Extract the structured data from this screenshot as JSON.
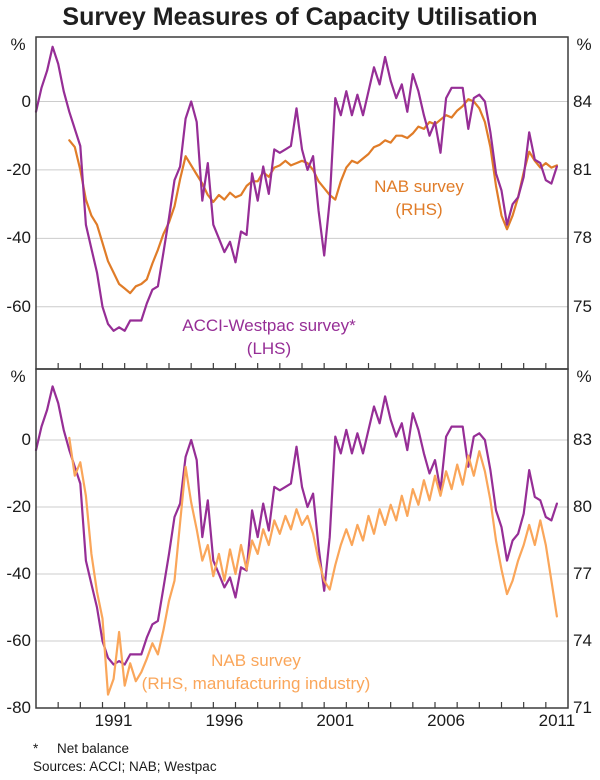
{
  "title": "Survey Measures of Capacity Utilisation",
  "footnote": {
    "marker": "*",
    "text": "Net balance"
  },
  "sources_line": "Sources: ACCI; NAB; Westpac",
  "colors": {
    "purple": "#962e96",
    "orange": "#e07c28",
    "light_orange": "#faa65a",
    "grid": "#cccccc",
    "axis": "#3c3c3c",
    "text": "#1b1b1b"
  },
  "chart_data": {
    "type": "line",
    "x_axis": {
      "range": [
        1988,
        2012
      ],
      "tick_interval_years": 1,
      "labels": [
        "1991",
        "1996",
        "2001",
        "2006",
        "2011"
      ]
    },
    "panels": [
      {
        "name": "top-panel",
        "left_axis": {
          "unit": "%",
          "ticks": [
            0,
            -20,
            -40,
            -60
          ]
        },
        "right_axis": {
          "unit": "%",
          "ticks": [
            84,
            81,
            78,
            75
          ]
        },
        "annotations": [
          {
            "line1": "NAB survey",
            "line2": "(RHS)",
            "color_key": "orange"
          },
          {
            "line1": "ACCI-Westpac survey*",
            "line2": "(LHS)",
            "color_key": "purple"
          }
        ],
        "series": [
          {
            "name": "NAB survey (RHS)",
            "axis": "right",
            "color_key": "orange",
            "x_start": 1989.5,
            "x_step": 0.25,
            "values": [
              82.3,
              82.0,
              81.0,
              79.7,
              79.0,
              78.6,
              77.8,
              77.0,
              76.5,
              76.0,
              75.8,
              75.6,
              75.9,
              76.0,
              76.2,
              76.9,
              77.5,
              78.2,
              78.7,
              79.4,
              80.6,
              81.6,
              81.2,
              80.8,
              80.4,
              79.9,
              79.6,
              79.9,
              79.7,
              80.0,
              79.8,
              79.9,
              80.3,
              80.5,
              80.5,
              80.9,
              80.7,
              81.1,
              81.2,
              81.4,
              81.2,
              81.3,
              81.4,
              81.3,
              81.0,
              80.5,
              80.2,
              79.9,
              79.7,
              80.5,
              81.1,
              81.4,
              81.3,
              81.5,
              81.7,
              82.0,
              82.1,
              82.3,
              82.2,
              82.5,
              82.5,
              82.4,
              82.6,
              82.9,
              82.8,
              83.1,
              83.0,
              83.2,
              83.4,
              83.3,
              83.6,
              83.8,
              84.1,
              84.0,
              83.7,
              83.1,
              82.0,
              80.3,
              79.0,
              78.4,
              79.0,
              79.8,
              80.9,
              81.8,
              81.4,
              81.1,
              81.3,
              81.1,
              81.2
            ]
          },
          {
            "name": "ACCI-Westpac survey* (LHS)",
            "axis": "left",
            "color_key": "purple",
            "x_start": 1988.0,
            "x_step": 0.25,
            "values": [
              -3,
              4,
              9,
              16,
              11,
              3,
              -3,
              -8,
              -13,
              -36,
              -43,
              -50,
              -60,
              -65,
              -67,
              -66,
              -67,
              -64,
              -64,
              -64,
              -59,
              -55,
              -54,
              -44,
              -34,
              -23,
              -19,
              -5,
              0,
              -6,
              -29,
              -18,
              -36,
              -40,
              -44,
              -41,
              -47,
              -38,
              -39,
              -21,
              -29,
              -19,
              -27,
              -14,
              -15,
              -14,
              -13,
              -2,
              -14,
              -20,
              -16,
              -32,
              -45,
              -29,
              1,
              -4,
              3,
              -4,
              2,
              -4,
              3,
              10,
              5,
              13,
              6,
              1,
              5,
              -3,
              8,
              3,
              -4,
              -10,
              -6,
              -15,
              1,
              4,
              4,
              4,
              -8,
              1,
              2,
              0,
              -9,
              -21,
              -26,
              -36,
              -30,
              -28,
              -22,
              -9,
              -17,
              -18,
              -23,
              -24,
              -19
            ]
          }
        ]
      },
      {
        "name": "bottom-panel",
        "left_axis": {
          "unit": "%",
          "ticks": [
            0,
            -20,
            -40,
            -60,
            -80
          ]
        },
        "right_axis": {
          "unit": "%",
          "ticks": [
            83,
            80,
            77,
            74,
            71
          ]
        },
        "annotations": [
          {
            "line1": "NAB survey",
            "line2": "(RHS, manufacturing industry)",
            "color_key": "light_orange"
          }
        ],
        "series": [
          {
            "name": "ACCI-Westpac survey* (LHS)",
            "axis": "left",
            "color_key": "purple",
            "x_start": 1988.0,
            "x_step": 0.25,
            "values": [
              -3,
              4,
              9,
              16,
              11,
              3,
              -3,
              -8,
              -13,
              -36,
              -43,
              -50,
              -60,
              -65,
              -67,
              -66,
              -67,
              -64,
              -64,
              -64,
              -59,
              -55,
              -54,
              -44,
              -34,
              -23,
              -19,
              -5,
              0,
              -6,
              -29,
              -18,
              -36,
              -40,
              -44,
              -41,
              -47,
              -38,
              -39,
              -21,
              -29,
              -19,
              -27,
              -14,
              -15,
              -14,
              -13,
              -2,
              -14,
              -20,
              -16,
              -32,
              -45,
              -29,
              1,
              -4,
              3,
              -4,
              2,
              -4,
              3,
              10,
              5,
              13,
              6,
              1,
              5,
              -3,
              8,
              3,
              -4,
              -10,
              -6,
              -15,
              1,
              4,
              4,
              4,
              -8,
              1,
              2,
              0,
              -9,
              -21,
              -26,
              -36,
              -30,
              -28,
              -22,
              -9,
              -17,
              -18,
              -23,
              -24,
              -19
            ]
          },
          {
            "name": "NAB survey (RHS, manufacturing industry)",
            "axis": "right",
            "color_key": "light_orange",
            "x_start": 1989.5,
            "x_step": 0.25,
            "values": [
              83.1,
              81.4,
              82.0,
              80.5,
              77.9,
              76.2,
              75.0,
              71.6,
              72.3,
              74.4,
              72.0,
              73.0,
              72.2,
              72.6,
              73.2,
              73.9,
              73.4,
              74.5,
              75.8,
              76.7,
              79.3,
              81.8,
              80.2,
              79.0,
              77.6,
              78.3,
              76.9,
              77.9,
              76.7,
              78.1,
              77.0,
              78.3,
              77.2,
              78.5,
              77.9,
              79.0,
              78.3,
              79.4,
              78.8,
              79.6,
              79.0,
              79.9,
              79.2,
              79.6,
              78.8,
              77.6,
              76.7,
              76.3,
              77.4,
              78.3,
              79.0,
              78.3,
              79.2,
              78.5,
              79.6,
              78.8,
              79.9,
              79.2,
              80.1,
              79.4,
              80.5,
              79.6,
              80.8,
              80.1,
              81.2,
              80.3,
              81.4,
              80.5,
              81.6,
              80.8,
              81.9,
              81.0,
              82.3,
              81.4,
              82.5,
              81.6,
              80.3,
              78.5,
              77.2,
              76.1,
              76.7,
              77.6,
              78.3,
              79.2,
              78.3,
              79.4,
              78.3,
              76.7,
              75.1
            ]
          }
        ]
      }
    ]
  }
}
